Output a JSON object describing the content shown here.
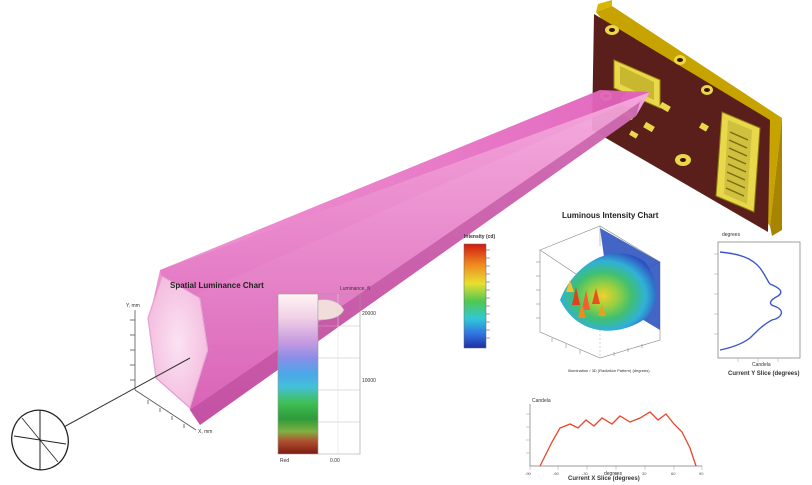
{
  "spatial_chart": {
    "title": "Spatial Luminance Chart",
    "y_unit": "Y, mm",
    "x_unit": "X, mm",
    "colorbar_header": "Luminance, fl",
    "colorbar_ticks": [
      "20000",
      "10000"
    ],
    "colorbar_bottom": "Red",
    "colorbar_bottom2": "0.00"
  },
  "intensity_chart": {
    "title": "Luminous Intensity Chart",
    "colorbar_header": "Intensity (cd)",
    "caption": "Illumination / 3D (Radiation Pattern) (degrees)"
  },
  "y_slice_chart": {
    "ylabel": "degrees",
    "xlabel": "Candela",
    "caption": "Current Y Slice (degrees)"
  },
  "x_slice_chart": {
    "ylabel": "Candela",
    "xlabel": "degrees",
    "caption": "Current X Slice (degrees)",
    "x_ticks": [
      "-90",
      "-60",
      "-30",
      "0",
      "30",
      "60",
      "90"
    ]
  },
  "colors": {
    "beam": "#e86fc4",
    "beam_dark": "#c84fa6",
    "board": "#5a1f1a",
    "board_edge": "#c7a300",
    "connector": "#e8d84a",
    "curve_blue": "#3a55c8",
    "curve_red": "#e8452a"
  }
}
